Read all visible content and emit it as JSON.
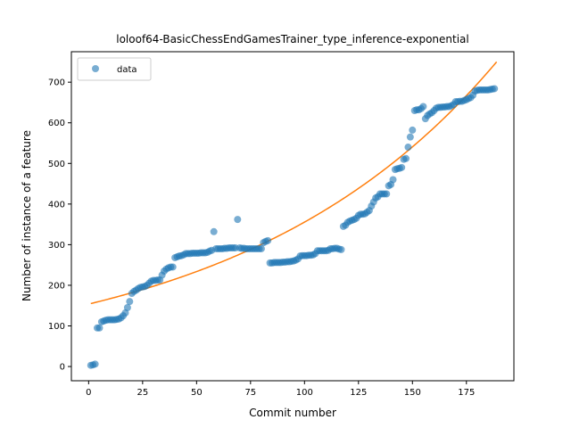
{
  "chart_data": {
    "type": "scatter",
    "title": "loloof64-BasicChessEndGamesTrainer_type_inference-exponential",
    "xlabel": "Commit number",
    "ylabel": "Number of instance of a feature",
    "xlim": [
      -8,
      197
    ],
    "ylim": [
      -35,
      775
    ],
    "xticks": [
      0,
      25,
      50,
      75,
      100,
      125,
      150,
      175
    ],
    "yticks": [
      0,
      100,
      200,
      300,
      400,
      500,
      600,
      700
    ],
    "legend": {
      "placement": "upper-left",
      "entries": [
        "data"
      ]
    },
    "grid": false,
    "colors": {
      "data": "#1f77b4",
      "fit": "#ff7f0e"
    },
    "series": [
      {
        "name": "data",
        "kind": "scatter",
        "points": [
          [
            1,
            3
          ],
          [
            2,
            4
          ],
          [
            3,
            6
          ],
          [
            4,
            95
          ],
          [
            5,
            95
          ],
          [
            6,
            110
          ],
          [
            7,
            112
          ],
          [
            8,
            114
          ],
          [
            9,
            115
          ],
          [
            10,
            115
          ],
          [
            11,
            115
          ],
          [
            12,
            115
          ],
          [
            13,
            116
          ],
          [
            14,
            117
          ],
          [
            15,
            120
          ],
          [
            16,
            125
          ],
          [
            17,
            132
          ],
          [
            18,
            145
          ],
          [
            19,
            160
          ],
          [
            20,
            180
          ],
          [
            21,
            185
          ],
          [
            22,
            188
          ],
          [
            23,
            192
          ],
          [
            24,
            195
          ],
          [
            25,
            196
          ],
          [
            26,
            197
          ],
          [
            27,
            200
          ],
          [
            28,
            205
          ],
          [
            29,
            210
          ],
          [
            30,
            212
          ],
          [
            31,
            212
          ],
          [
            32,
            213
          ],
          [
            33,
            213
          ],
          [
            34,
            225
          ],
          [
            35,
            235
          ],
          [
            36,
            240
          ],
          [
            37,
            243
          ],
          [
            38,
            245
          ],
          [
            39,
            245
          ],
          [
            40,
            268
          ],
          [
            41,
            270
          ],
          [
            42,
            272
          ],
          [
            43,
            273
          ],
          [
            44,
            275
          ],
          [
            45,
            278
          ],
          [
            46,
            278
          ],
          [
            47,
            278
          ],
          [
            48,
            279
          ],
          [
            49,
            279
          ],
          [
            50,
            279
          ],
          [
            51,
            279
          ],
          [
            52,
            280
          ],
          [
            53,
            280
          ],
          [
            54,
            280
          ],
          [
            55,
            281
          ],
          [
            56,
            284
          ],
          [
            57,
            286
          ],
          [
            58,
            332
          ],
          [
            59,
            290
          ],
          [
            60,
            290
          ],
          [
            61,
            290
          ],
          [
            62,
            290
          ],
          [
            63,
            291
          ],
          [
            64,
            291
          ],
          [
            65,
            292
          ],
          [
            66,
            292
          ],
          [
            67,
            292
          ],
          [
            68,
            292
          ],
          [
            69,
            362
          ],
          [
            70,
            292
          ],
          [
            71,
            291
          ],
          [
            72,
            291
          ],
          [
            73,
            290
          ],
          [
            74,
            290
          ],
          [
            75,
            290
          ],
          [
            76,
            290
          ],
          [
            77,
            290
          ],
          [
            78,
            290
          ],
          [
            79,
            290
          ],
          [
            80,
            290
          ],
          [
            81,
            305
          ],
          [
            82,
            308
          ],
          [
            83,
            310
          ],
          [
            84,
            255
          ],
          [
            85,
            255
          ],
          [
            86,
            256
          ],
          [
            87,
            256
          ],
          [
            88,
            256
          ],
          [
            89,
            256
          ],
          [
            90,
            257
          ],
          [
            91,
            257
          ],
          [
            92,
            258
          ],
          [
            93,
            258
          ],
          [
            94,
            259
          ],
          [
            95,
            260
          ],
          [
            96,
            262
          ],
          [
            97,
            265
          ],
          [
            98,
            272
          ],
          [
            99,
            273
          ],
          [
            100,
            273
          ],
          [
            101,
            273
          ],
          [
            102,
            274
          ],
          [
            103,
            274
          ],
          [
            104,
            275
          ],
          [
            105,
            278
          ],
          [
            106,
            285
          ],
          [
            107,
            285
          ],
          [
            108,
            285
          ],
          [
            109,
            285
          ],
          [
            110,
            285
          ],
          [
            111,
            286
          ],
          [
            112,
            290
          ],
          [
            113,
            290
          ],
          [
            114,
            291
          ],
          [
            115,
            291
          ],
          [
            116,
            289
          ],
          [
            117,
            288
          ],
          [
            118,
            345
          ],
          [
            119,
            348
          ],
          [
            120,
            355
          ],
          [
            121,
            358
          ],
          [
            122,
            360
          ],
          [
            123,
            362
          ],
          [
            124,
            365
          ],
          [
            125,
            372
          ],
          [
            126,
            375
          ],
          [
            127,
            375
          ],
          [
            128,
            376
          ],
          [
            129,
            380
          ],
          [
            130,
            384
          ],
          [
            131,
            395
          ],
          [
            132,
            405
          ],
          [
            133,
            415
          ],
          [
            134,
            418
          ],
          [
            135,
            425
          ],
          [
            136,
            425
          ],
          [
            137,
            425
          ],
          [
            138,
            425
          ],
          [
            139,
            445
          ],
          [
            140,
            448
          ],
          [
            141,
            460
          ],
          [
            142,
            485
          ],
          [
            143,
            487
          ],
          [
            144,
            488
          ],
          [
            145,
            490
          ],
          [
            146,
            510
          ],
          [
            147,
            512
          ],
          [
            148,
            540
          ],
          [
            149,
            565
          ],
          [
            150,
            582
          ],
          [
            151,
            630
          ],
          [
            152,
            632
          ],
          [
            153,
            632
          ],
          [
            154,
            635
          ],
          [
            155,
            640
          ],
          [
            156,
            610
          ],
          [
            157,
            618
          ],
          [
            158,
            622
          ],
          [
            159,
            625
          ],
          [
            160,
            630
          ],
          [
            161,
            636
          ],
          [
            162,
            638
          ],
          [
            163,
            638
          ],
          [
            164,
            639
          ],
          [
            165,
            639
          ],
          [
            166,
            640
          ],
          [
            167,
            640
          ],
          [
            168,
            642
          ],
          [
            169,
            645
          ],
          [
            170,
            652
          ],
          [
            171,
            652
          ],
          [
            172,
            653
          ],
          [
            173,
            653
          ],
          [
            174,
            655
          ],
          [
            175,
            657
          ],
          [
            176,
            660
          ],
          [
            177,
            662
          ],
          [
            178,
            668
          ],
          [
            179,
            678
          ],
          [
            180,
            680
          ],
          [
            181,
            681
          ],
          [
            182,
            681
          ],
          [
            183,
            681
          ],
          [
            184,
            681
          ],
          [
            185,
            681
          ],
          [
            186,
            682
          ],
          [
            187,
            683
          ],
          [
            188,
            684
          ]
        ]
      },
      {
        "name": "",
        "kind": "line",
        "x_start": 1,
        "x_end": 189,
        "fit_y_at_x_start": 155,
        "fit_y_at_x_end": 750
      }
    ]
  }
}
